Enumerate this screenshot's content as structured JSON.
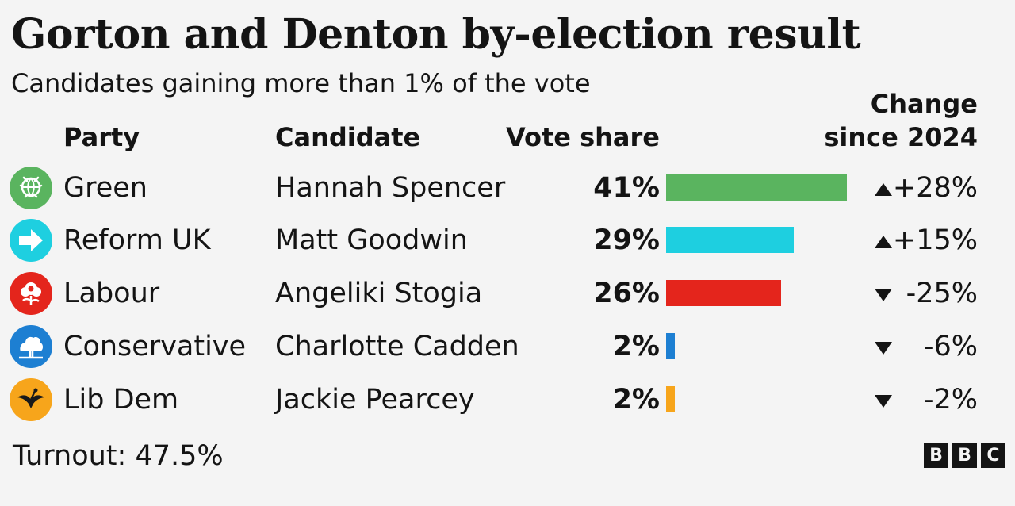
{
  "chart_data": {
    "type": "bar",
    "title": "Gorton and Denton by-election result",
    "subtitle": "Candidates gaining more than 1% of the vote",
    "columns": {
      "party": "Party",
      "candidate": "Candidate",
      "share": "Vote share",
      "change_line1": "Change",
      "change_line2": "since 2024"
    },
    "xlim": [
      0,
      41
    ],
    "rows": [
      {
        "party": "Green",
        "candidate": "Hannah Spencer",
        "value": 41,
        "share_label": "41%",
        "direction": "up",
        "change_label": "+28%",
        "color": "#5ab45f",
        "logo": "green-party-logo-icon"
      },
      {
        "party": "Reform UK",
        "candidate": "Matt Goodwin",
        "value": 29,
        "share_label": "29%",
        "direction": "up",
        "change_label": "+15%",
        "color": "#1ecfe0",
        "logo": "reform-uk-logo-icon"
      },
      {
        "party": "Labour",
        "candidate": "Angeliki Stogia",
        "value": 26,
        "share_label": "26%",
        "direction": "down",
        "change_label": "-25%",
        "color": "#e4251c",
        "logo": "labour-logo-icon"
      },
      {
        "party": "Conservative",
        "candidate": "Charlotte Cadden",
        "value": 2,
        "share_label": "2%",
        "direction": "down",
        "change_label": "-6%",
        "color": "#1d7fd2",
        "logo": "conservative-logo-icon"
      },
      {
        "party": "Lib Dem",
        "candidate": "Jackie Pearcey",
        "value": 2,
        "share_label": "2%",
        "direction": "down",
        "change_label": "-2%",
        "color": "#f7a51b",
        "logo": "lib-dem-logo-icon"
      }
    ]
  },
  "footer": {
    "turnout": "Turnout: 47.5%",
    "brand": [
      "B",
      "B",
      "C"
    ]
  }
}
